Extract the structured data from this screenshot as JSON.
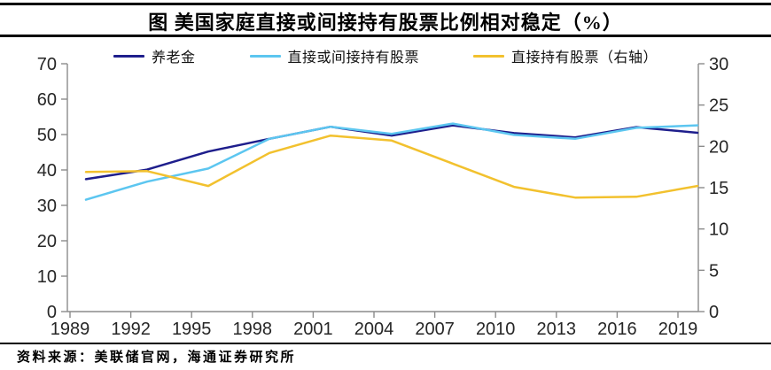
{
  "chart_data": {
    "type": "line",
    "title": "图 美国家庭直接或间接持有股票比例相对稳定（%）",
    "categories": [
      "1989",
      "1992",
      "1995",
      "1998",
      "2001",
      "2004",
      "2007",
      "2010",
      "2013",
      "2016",
      "2019"
    ],
    "series": [
      {
        "name": "养老金",
        "axis": "left",
        "color": "#1E1E8C",
        "values": [
          37.4,
          40.1,
          45.2,
          48.8,
          52.2,
          49.7,
          52.6,
          50.4,
          49.2,
          52.1,
          50.5
        ]
      },
      {
        "name": "直接或间接持有股票",
        "axis": "left",
        "color": "#5CC6F0",
        "values": [
          31.6,
          36.7,
          40.4,
          48.8,
          52.2,
          50.2,
          53.1,
          49.9,
          48.8,
          51.9,
          52.6
        ]
      },
      {
        "name": "直接持有股票（右轴）",
        "axis": "right",
        "color": "#F2C12E",
        "values": [
          16.9,
          17.0,
          15.2,
          19.2,
          21.3,
          20.7,
          17.9,
          15.1,
          13.8,
          13.9,
          15.2
        ]
      }
    ],
    "left_axis": {
      "min": 0,
      "max": 70,
      "ticks": [
        0,
        10,
        20,
        30,
        40,
        50,
        60,
        70
      ]
    },
    "right_axis": {
      "min": 0,
      "max": 30,
      "ticks": [
        0,
        5,
        10,
        15,
        20,
        25,
        30
      ]
    },
    "grid": false,
    "legend_position": "top-center"
  },
  "source": {
    "text": "资料来源：美联储官网，海通证券研究所"
  },
  "style_colors": {
    "axis_line": "#8C8C8C",
    "tick_label": "#262626",
    "rule": "#000000"
  }
}
